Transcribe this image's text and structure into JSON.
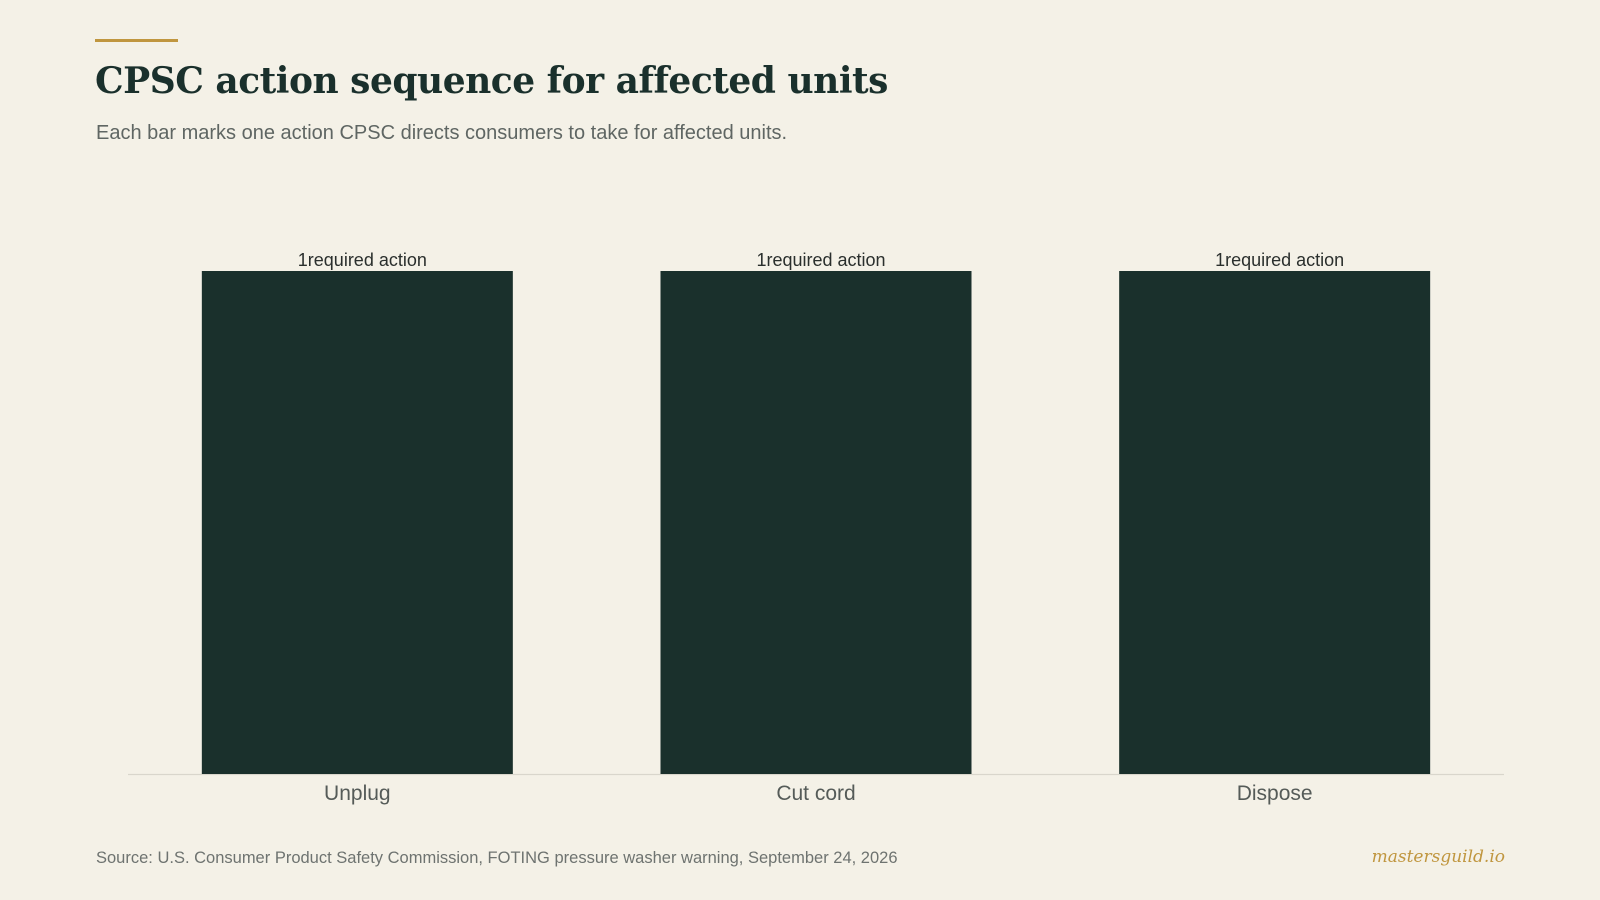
{
  "header": {
    "title": "CPSC action sequence for affected units",
    "subtitle": "Each bar marks one action CPSC directs consumers to take for affected units."
  },
  "footer": {
    "source": "Source: U.S. Consumer Product Safety Commission, FOTING pressure washer warning, September 24, 2026",
    "brand": "mastersguild.io"
  },
  "colors": {
    "background": "#f4f1e7",
    "bar": "#1a302c",
    "accent": "#c0963f",
    "axis": "#d9d6cc"
  },
  "chart_data": {
    "type": "bar",
    "title": "CPSC action sequence for affected units",
    "subtitle": "Each bar marks one action CPSC directs consumers to take for affected units.",
    "categories": [
      "Unplug",
      "Cut cord",
      "Dispose"
    ],
    "values": [
      1,
      1,
      1
    ],
    "data_labels": [
      "1required action",
      "1required action",
      "1required action"
    ],
    "xlabel": "",
    "ylabel": "",
    "ylim": [
      0,
      1
    ],
    "grid": false,
    "legend": "none",
    "y_axis_visible": false
  }
}
